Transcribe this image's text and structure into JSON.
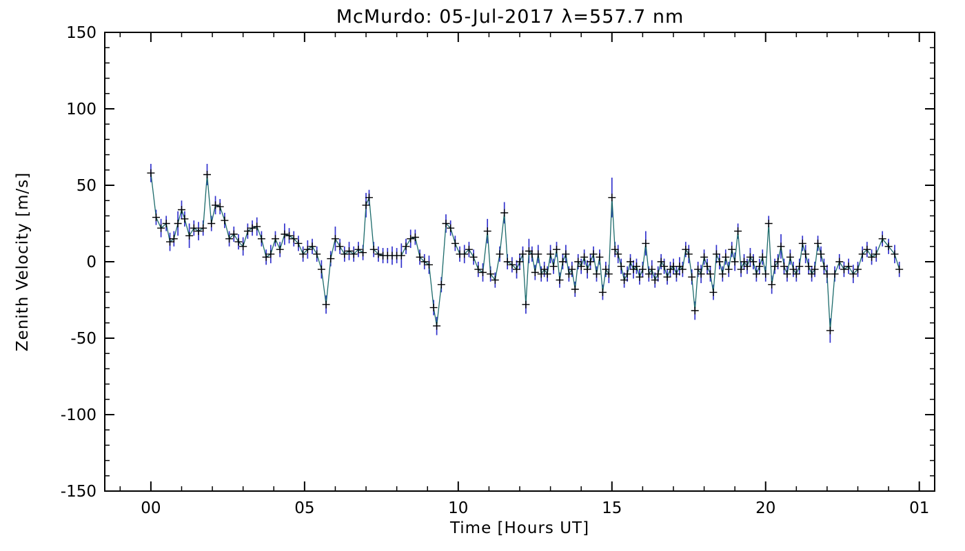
{
  "page": {
    "background": "#ffffff"
  },
  "chart_data": {
    "type": "line",
    "title": "McMurdo: 05-Jul-2017 λ=557.7 nm",
    "xlabel": "Time [Hours UT]",
    "ylabel": "Zenith Velocity [m/s]",
    "xlim": [
      -1.5,
      25.5
    ],
    "ylim": [
      -150,
      150
    ],
    "x_major_ticks": [
      0,
      5,
      10,
      15,
      20,
      25
    ],
    "x_major_labels": [
      "00",
      "05",
      "10",
      "15",
      "20",
      "01"
    ],
    "x_minor_step": 1,
    "y_major_ticks": [
      -150,
      -100,
      -50,
      0,
      50,
      100,
      150
    ],
    "y_major_labels": [
      "-150",
      "-100",
      "-50",
      "0",
      "50",
      "100",
      "150"
    ],
    "y_minor_step": 10,
    "grid": false,
    "legend": null,
    "marker": "plus",
    "error_bars": true,
    "colors": {
      "line": "#1b6a6a",
      "marker": "#000000",
      "error_bar": "#3232cd",
      "axis": "#000000",
      "background": "#ffffff"
    },
    "series": [
      {
        "name": "zenith_velocity",
        "points": [
          [
            0.0,
            58,
            6
          ],
          [
            0.17,
            29,
            5
          ],
          [
            0.33,
            22,
            6
          ],
          [
            0.5,
            25,
            5
          ],
          [
            0.62,
            13,
            6
          ],
          [
            0.75,
            15,
            5
          ],
          [
            0.88,
            25,
            8
          ],
          [
            1.0,
            34,
            6
          ],
          [
            1.1,
            28,
            5
          ],
          [
            1.25,
            17,
            8
          ],
          [
            1.4,
            22,
            5
          ],
          [
            1.55,
            20,
            6
          ],
          [
            1.7,
            22,
            5
          ],
          [
            1.83,
            57,
            7
          ],
          [
            1.97,
            25,
            5
          ],
          [
            2.1,
            37,
            6
          ],
          [
            2.25,
            36,
            5
          ],
          [
            2.4,
            27,
            5
          ],
          [
            2.55,
            15,
            5
          ],
          [
            2.7,
            18,
            5
          ],
          [
            2.85,
            13,
            5
          ],
          [
            3.0,
            10,
            6
          ],
          [
            3.15,
            20,
            5
          ],
          [
            3.3,
            22,
            5
          ],
          [
            3.45,
            23,
            6
          ],
          [
            3.6,
            15,
            5
          ],
          [
            3.75,
            3,
            5
          ],
          [
            3.9,
            5,
            6
          ],
          [
            4.05,
            15,
            5
          ],
          [
            4.2,
            8,
            5
          ],
          [
            4.35,
            18,
            7
          ],
          [
            4.5,
            17,
            5
          ],
          [
            4.65,
            15,
            5
          ],
          [
            4.8,
            12,
            5
          ],
          [
            4.95,
            5,
            5
          ],
          [
            5.1,
            8,
            6
          ],
          [
            5.25,
            10,
            5
          ],
          [
            5.4,
            5,
            5
          ],
          [
            5.55,
            -5,
            6
          ],
          [
            5.7,
            -28,
            6
          ],
          [
            5.85,
            2,
            5
          ],
          [
            6.0,
            15,
            8
          ],
          [
            6.15,
            10,
            5
          ],
          [
            6.3,
            5,
            5
          ],
          [
            6.45,
            7,
            6
          ],
          [
            6.6,
            5,
            5
          ],
          [
            6.75,
            8,
            5
          ],
          [
            6.9,
            6,
            5
          ],
          [
            7.0,
            37,
            8
          ],
          [
            7.1,
            42,
            5
          ],
          [
            7.25,
            8,
            5
          ],
          [
            7.4,
            5,
            5
          ],
          [
            7.55,
            4,
            5
          ],
          [
            7.7,
            4,
            5
          ],
          [
            7.85,
            4,
            6
          ],
          [
            8.0,
            4,
            5
          ],
          [
            8.15,
            4,
            8
          ],
          [
            8.3,
            10,
            5
          ],
          [
            8.45,
            15,
            6
          ],
          [
            8.6,
            16,
            5
          ],
          [
            8.75,
            3,
            5
          ],
          [
            8.9,
            0,
            5
          ],
          [
            9.05,
            -2,
            6
          ],
          [
            9.2,
            -30,
            5
          ],
          [
            9.3,
            -42,
            6
          ],
          [
            9.45,
            -15,
            5
          ],
          [
            9.6,
            25,
            6
          ],
          [
            9.75,
            22,
            5
          ],
          [
            9.9,
            12,
            5
          ],
          [
            10.05,
            5,
            5
          ],
          [
            10.2,
            5,
            6
          ],
          [
            10.35,
            8,
            5
          ],
          [
            10.5,
            3,
            5
          ],
          [
            10.65,
            -5,
            5
          ],
          [
            10.8,
            -7,
            6
          ],
          [
            10.95,
            20,
            8
          ],
          [
            11.05,
            -8,
            5
          ],
          [
            11.2,
            -12,
            5
          ],
          [
            11.35,
            5,
            5
          ],
          [
            11.5,
            32,
            7
          ],
          [
            11.6,
            0,
            5
          ],
          [
            11.75,
            -2,
            5
          ],
          [
            11.9,
            -5,
            6
          ],
          [
            12.0,
            0,
            5
          ],
          [
            12.1,
            5,
            5
          ],
          [
            12.2,
            -28,
            6
          ],
          [
            12.3,
            7,
            8
          ],
          [
            12.4,
            5,
            5
          ],
          [
            12.5,
            -7,
            5
          ],
          [
            12.6,
            5,
            6
          ],
          [
            12.7,
            -8,
            5
          ],
          [
            12.8,
            -5,
            5
          ],
          [
            12.9,
            -8,
            5
          ],
          [
            13.0,
            5,
            6
          ],
          [
            13.1,
            -3,
            5
          ],
          [
            13.2,
            8,
            5
          ],
          [
            13.3,
            -12,
            5
          ],
          [
            13.4,
            0,
            5
          ],
          [
            13.5,
            5,
            6
          ],
          [
            13.6,
            -8,
            5
          ],
          [
            13.7,
            -5,
            5
          ],
          [
            13.8,
            -18,
            5
          ],
          [
            13.9,
            0,
            5
          ],
          [
            14.0,
            -3,
            5
          ],
          [
            14.1,
            3,
            5
          ],
          [
            14.2,
            -5,
            6
          ],
          [
            14.3,
            0,
            5
          ],
          [
            14.4,
            5,
            5
          ],
          [
            14.5,
            -8,
            5
          ],
          [
            14.6,
            3,
            5
          ],
          [
            14.7,
            -20,
            5
          ],
          [
            14.8,
            -5,
            5
          ],
          [
            14.9,
            -8,
            6
          ],
          [
            15.0,
            42,
            13
          ],
          [
            15.1,
            8,
            5
          ],
          [
            15.2,
            5,
            6
          ],
          [
            15.3,
            -3,
            5
          ],
          [
            15.4,
            -12,
            5
          ],
          [
            15.5,
            -8,
            5
          ],
          [
            15.6,
            0,
            5
          ],
          [
            15.7,
            -5,
            6
          ],
          [
            15.8,
            -3,
            5
          ],
          [
            15.9,
            -10,
            5
          ],
          [
            16.0,
            -5,
            5
          ],
          [
            16.1,
            12,
            8
          ],
          [
            16.2,
            -8,
            5
          ],
          [
            16.3,
            -5,
            6
          ],
          [
            16.4,
            -12,
            5
          ],
          [
            16.5,
            -8,
            5
          ],
          [
            16.6,
            0,
            5
          ],
          [
            16.7,
            -3,
            5
          ],
          [
            16.8,
            -10,
            5
          ],
          [
            16.9,
            -5,
            5
          ],
          [
            17.0,
            -3,
            5
          ],
          [
            17.1,
            -8,
            5
          ],
          [
            17.2,
            -3,
            6
          ],
          [
            17.3,
            -5,
            5
          ],
          [
            17.4,
            8,
            5
          ],
          [
            17.5,
            5,
            6
          ],
          [
            17.6,
            -10,
            5
          ],
          [
            17.7,
            -32,
            6
          ],
          [
            17.8,
            -5,
            5
          ],
          [
            17.9,
            -8,
            6
          ],
          [
            18.0,
            3,
            5
          ],
          [
            18.1,
            -3,
            5
          ],
          [
            18.2,
            -8,
            5
          ],
          [
            18.3,
            -20,
            5
          ],
          [
            18.4,
            5,
            6
          ],
          [
            18.5,
            0,
            5
          ],
          [
            18.6,
            -8,
            5
          ],
          [
            18.7,
            3,
            5
          ],
          [
            18.8,
            -5,
            5
          ],
          [
            18.9,
            8,
            5
          ],
          [
            19.0,
            0,
            6
          ],
          [
            19.1,
            20,
            5
          ],
          [
            19.2,
            -5,
            5
          ],
          [
            19.3,
            0,
            5
          ],
          [
            19.4,
            -3,
            5
          ],
          [
            19.5,
            3,
            6
          ],
          [
            19.6,
            0,
            5
          ],
          [
            19.7,
            -8,
            5
          ],
          [
            19.8,
            -3,
            5
          ],
          [
            19.9,
            3,
            5
          ],
          [
            20.0,
            -8,
            5
          ],
          [
            20.1,
            25,
            5
          ],
          [
            20.2,
            -15,
            6
          ],
          [
            20.3,
            -3,
            5
          ],
          [
            20.4,
            0,
            5
          ],
          [
            20.5,
            10,
            8
          ],
          [
            20.6,
            -3,
            5
          ],
          [
            20.7,
            -8,
            5
          ],
          [
            20.8,
            3,
            5
          ],
          [
            20.9,
            -5,
            5
          ],
          [
            21.0,
            -8,
            5
          ],
          [
            21.1,
            -3,
            5
          ],
          [
            21.2,
            12,
            5
          ],
          [
            21.3,
            5,
            6
          ],
          [
            21.4,
            -3,
            5
          ],
          [
            21.5,
            -8,
            5
          ],
          [
            21.6,
            -5,
            5
          ],
          [
            21.7,
            12,
            5
          ],
          [
            21.8,
            5,
            5
          ],
          [
            21.9,
            -3,
            5
          ],
          [
            22.0,
            -8,
            6
          ],
          [
            22.1,
            -45,
            8
          ],
          [
            22.25,
            -8,
            5
          ],
          [
            22.4,
            0,
            5
          ],
          [
            22.55,
            -5,
            5
          ],
          [
            22.7,
            -3,
            5
          ],
          [
            22.85,
            -8,
            6
          ],
          [
            23.0,
            -5,
            5
          ],
          [
            23.15,
            5,
            5
          ],
          [
            23.3,
            8,
            5
          ],
          [
            23.45,
            3,
            5
          ],
          [
            23.6,
            5,
            5
          ],
          [
            23.8,
            15,
            5
          ],
          [
            24.0,
            10,
            5
          ],
          [
            24.2,
            5,
            6
          ],
          [
            24.35,
            -5,
            5
          ]
        ]
      }
    ]
  }
}
